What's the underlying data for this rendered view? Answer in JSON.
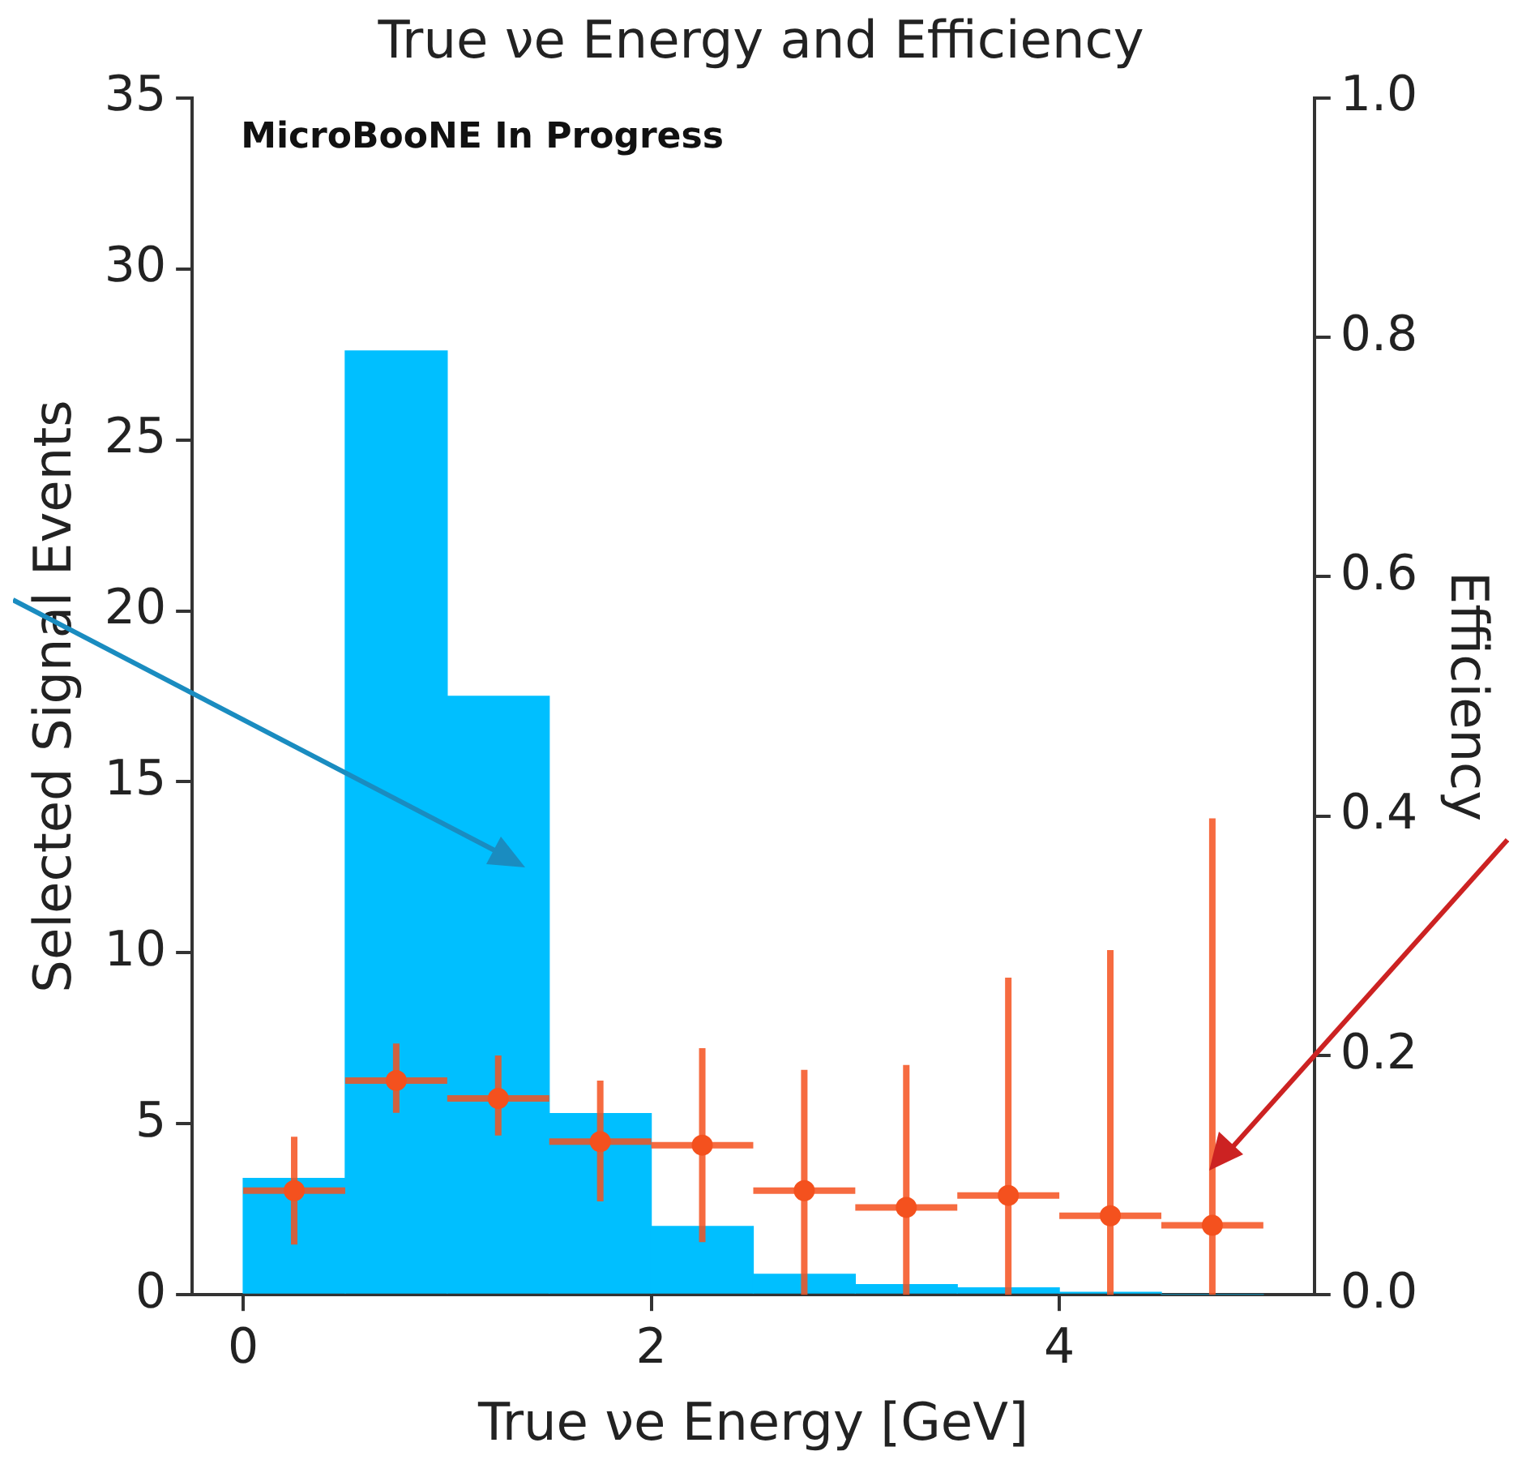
{
  "chart_data": {
    "type": "histogram",
    "title": "True νe Energy and Efficiency",
    "xlabel": "True νe Energy [GeV]",
    "ylabel": "Selected Signal Events",
    "y2label": "Efficiency",
    "annotations": [
      "MicroBooNE In Progress"
    ],
    "bins": [
      0,
      0.5,
      1,
      1.5,
      2,
      2.5,
      3,
      3.5,
      4,
      4.5,
      5
    ],
    "series": [
      {
        "color": "#00bfff",
        "values": [
          3.4,
          27.6,
          17.5,
          5.3,
          2.0,
          0.6,
          0.3,
          0.2,
          0.07,
          0
        ]
      },
      {
        "type": "scatter",
        "axis": "y2",
        "color": "#f4511e",
        "x": [
          0.25,
          0.75,
          1.25,
          1.75,
          2.25,
          2.75,
          3.25,
          3.75,
          4.25,
          4.75
        ],
        "values": [
          0.087,
          0.179,
          0.164,
          0.128,
          0.125,
          0.087,
          0.073,
          0.083,
          0.066,
          0.058
        ],
        "errors": [
          [
            0.042,
            0.132
          ],
          [
            0.152,
            0.21
          ],
          [
            0.133,
            0.2
          ],
          [
            0.078,
            0.179
          ],
          [
            0.044,
            0.206
          ],
          [
            0,
            0.188
          ],
          [
            0,
            0.192
          ],
          [
            0,
            0.265
          ],
          [
            0,
            0.288
          ],
          [
            0,
            0.398
          ]
        ],
        "xerrors": [
          0.25,
          0.25,
          0.25,
          0.25,
          0.25,
          0.25,
          0.25,
          0.25,
          0.25,
          0.25
        ]
      }
    ],
    "xlim": [
      -0.25,
      5.25
    ],
    "xticks": [
      0,
      2,
      4
    ],
    "ylim": [
      0,
      35
    ],
    "yticks": [
      0,
      5,
      10,
      15,
      20,
      25,
      30,
      35
    ],
    "y2lim": [
      0,
      1
    ],
    "y2ticks": [
      {
        "value": 0,
        "label": "0.0"
      },
      {
        "value": 0.2,
        "label": "0.2"
      },
      {
        "value": 0.4,
        "label": "0.4"
      },
      {
        "value": 0.6,
        "label": "0.6"
      },
      {
        "value": 0.8,
        "label": "0.8"
      },
      {
        "value": 1,
        "label": "1.0"
      }
    ],
    "grid": false,
    "legend": false,
    "marker": "circle"
  }
}
